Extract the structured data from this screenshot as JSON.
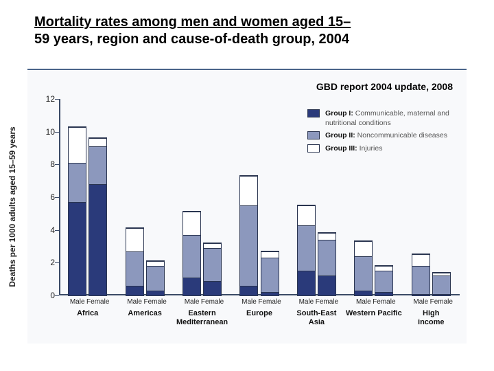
{
  "title_line1": "Mortality rates among men and women aged 15–",
  "title_line2": "59 years, region and cause-of-death group, 2004",
  "source_note": "GBD report 2004 update, 2008",
  "y_axis_label": "Deaths per 1000 adults aged 15–59 years",
  "chart": {
    "type": "stacked-bar",
    "y_max": 12,
    "y_ticks": [
      0,
      2,
      4,
      6,
      8,
      10,
      12
    ],
    "background_color": "#f8f9fb",
    "axis_color": "#3a4a66",
    "segment_order": [
      "group1",
      "group2",
      "group3"
    ],
    "colors": {
      "group1": "#2a3a7a",
      "group2": "#8c98bd",
      "group3": "#ffffff"
    },
    "bar_border": "#2a3550",
    "sex_labels": [
      "Male",
      "Female"
    ],
    "regions": [
      {
        "name": "Africa",
        "male": {
          "group1": 5.7,
          "group2": 2.4,
          "group3": 2.2
        },
        "female": {
          "group1": 6.8,
          "group2": 2.3,
          "group3": 0.5
        }
      },
      {
        "name": "Americas",
        "male": {
          "group1": 0.6,
          "group2": 2.1,
          "group3": 1.4
        },
        "female": {
          "group1": 0.3,
          "group2": 1.5,
          "group3": 0.3
        }
      },
      {
        "name": "Eastern\nMediterranean",
        "male": {
          "group1": 1.1,
          "group2": 2.6,
          "group3": 1.4
        },
        "female": {
          "group1": 0.9,
          "group2": 2.0,
          "group3": 0.3
        }
      },
      {
        "name": "Europe",
        "male": {
          "group1": 0.6,
          "group2": 4.9,
          "group3": 1.8
        },
        "female": {
          "group1": 0.2,
          "group2": 2.1,
          "group3": 0.4
        }
      },
      {
        "name": "South-East\nAsia",
        "male": {
          "group1": 1.5,
          "group2": 2.8,
          "group3": 1.2
        },
        "female": {
          "group1": 1.2,
          "group2": 2.2,
          "group3": 0.4
        }
      },
      {
        "name": "Western Pacific",
        "male": {
          "group1": 0.3,
          "group2": 2.1,
          "group3": 0.9
        },
        "female": {
          "group1": 0.2,
          "group2": 1.3,
          "group3": 0.3
        }
      },
      {
        "name": "High income",
        "male": {
          "group1": 0.1,
          "group2": 1.7,
          "group3": 0.7
        },
        "female": {
          "group1": 0.1,
          "group2": 1.1,
          "group3": 0.2
        }
      }
    ]
  },
  "legend": {
    "items": [
      {
        "color_key": "group1",
        "title": "Group I:",
        "desc": "Communicable, maternal and nutritional conditions"
      },
      {
        "color_key": "group2",
        "title": "Group II:",
        "desc": "Noncommunicable diseases"
      },
      {
        "color_key": "group3",
        "title": "Group III:",
        "desc": "Injuries"
      }
    ]
  }
}
